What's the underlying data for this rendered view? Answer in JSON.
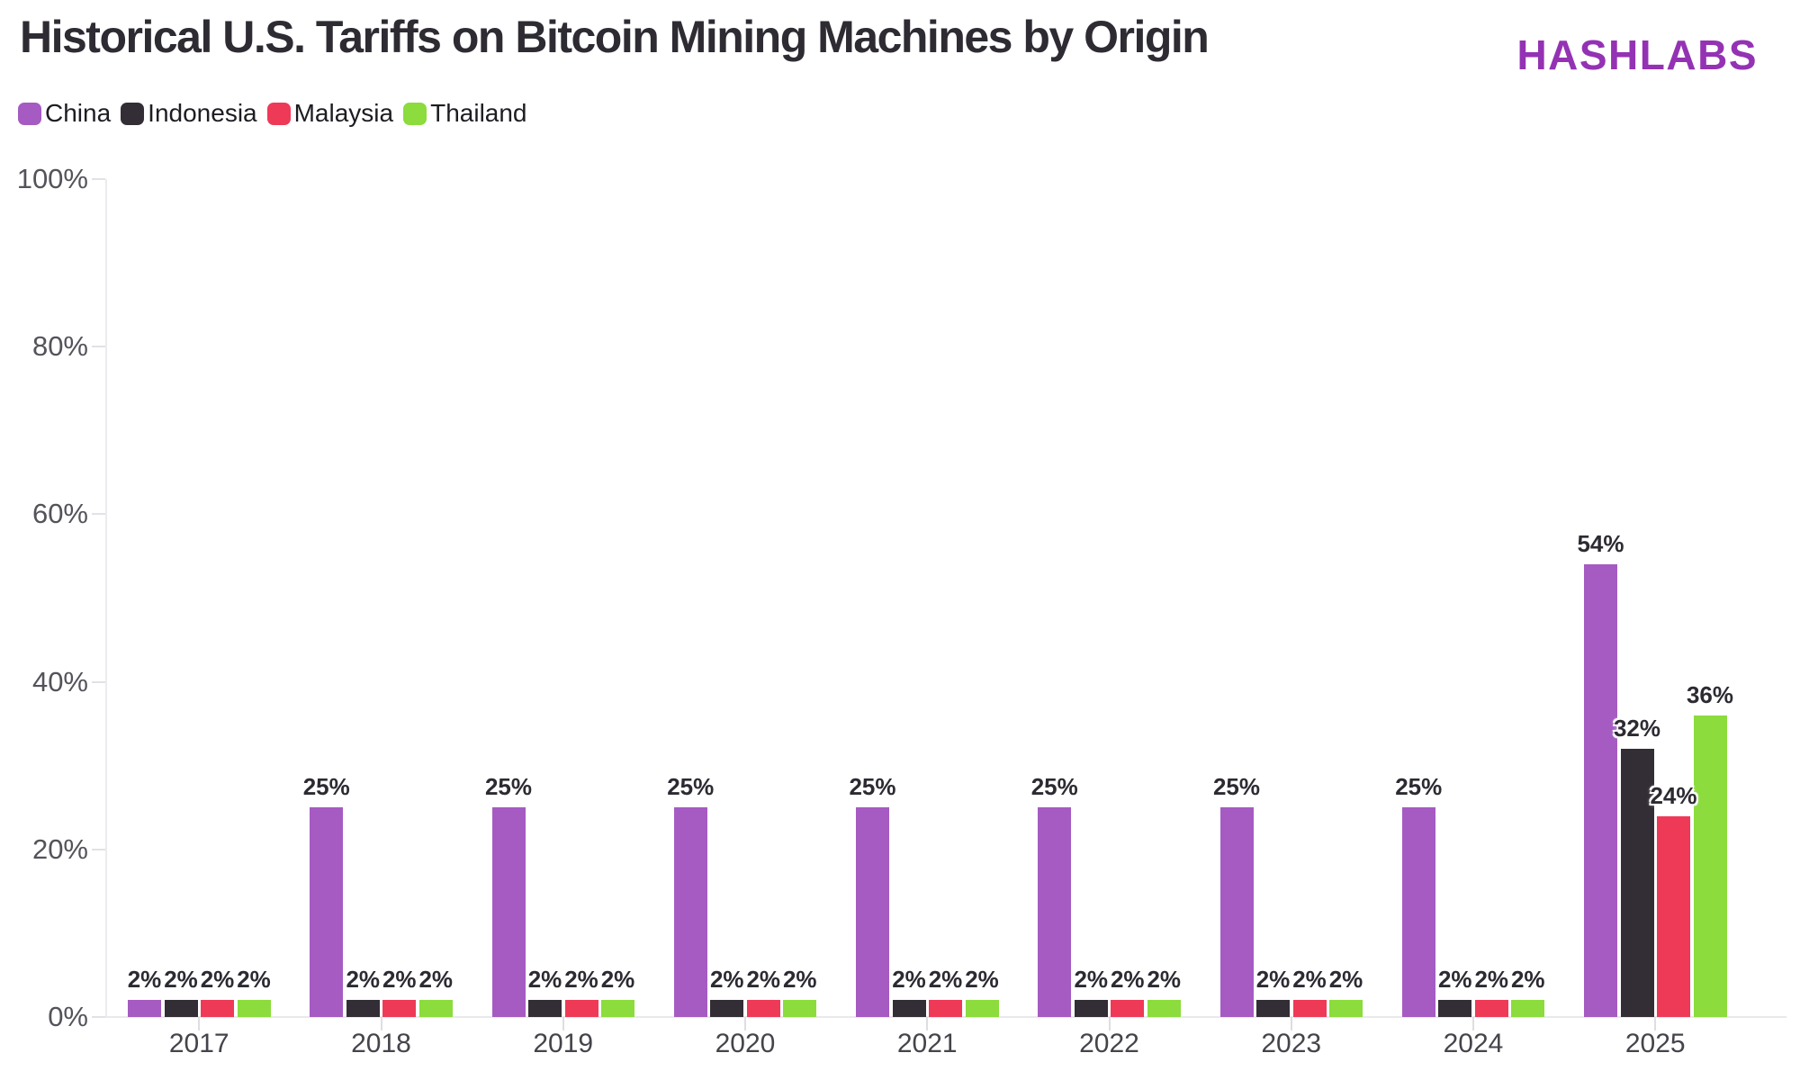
{
  "header": {
    "title": "Historical U.S. Tariffs on Bitcoin Mining Machines by Origin",
    "logo": "HASHLABS",
    "logo_color": "#9432b4"
  },
  "chart_data": {
    "type": "bar",
    "title": "Historical U.S. Tariffs on Bitcoin Mining Machines by Origin",
    "categories": [
      "2017",
      "2018",
      "2019",
      "2020",
      "2021",
      "2022",
      "2023",
      "2024",
      "2025"
    ],
    "series": [
      {
        "name": "China",
        "color": "#a55bc2",
        "values": [
          2,
          25,
          25,
          25,
          25,
          25,
          25,
          25,
          54
        ]
      },
      {
        "name": "Indonesia",
        "color": "#332e35",
        "values": [
          2,
          2,
          2,
          2,
          2,
          2,
          2,
          2,
          32
        ]
      },
      {
        "name": "Malaysia",
        "color": "#ee3a57",
        "values": [
          2,
          2,
          2,
          2,
          2,
          2,
          2,
          2,
          24
        ]
      },
      {
        "name": "Thailand",
        "color": "#8bdc3c",
        "values": [
          2,
          2,
          2,
          2,
          2,
          2,
          2,
          2,
          36
        ]
      }
    ],
    "value_label_suffix": "%",
    "y_tick_labels": [
      "0%",
      "20%",
      "40%",
      "60%",
      "80%",
      "100%"
    ],
    "y_tick_values": [
      0,
      20,
      40,
      60,
      80,
      100
    ],
    "ylim": [
      0,
      100
    ],
    "xlabel": "",
    "ylabel": "",
    "grid": false,
    "legend_position": "top-left"
  }
}
